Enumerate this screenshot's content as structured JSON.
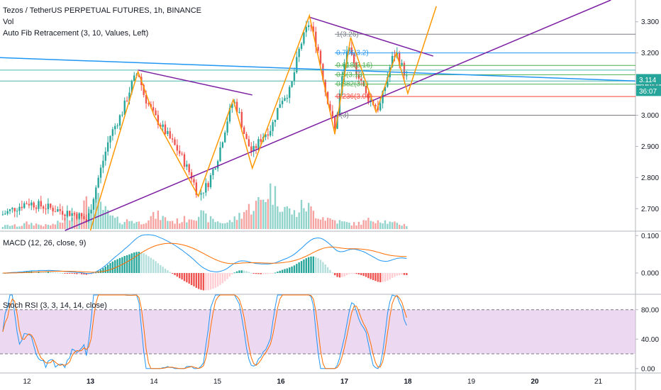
{
  "header": {
    "title": "Tezos / TetherUS PERPETUAL FUTURES, 1h, BINANCE",
    "vol_label": "Vol",
    "fib_label": "Auto Fib Retracement (3, 10, Values, Left)"
  },
  "price_badges": {
    "last": "3.114",
    "countdown": "36:07"
  },
  "macd": {
    "label": "MACD (12, 26, close, 9)"
  },
  "stoch": {
    "label": "Stoch RSI (3, 3, 14, 14, close)"
  },
  "colors": {
    "up": "#26a69a",
    "down": "#ef5350",
    "vol_up": "#8fd3cb",
    "vol_down": "#f5a3a1",
    "pattern": "#ff9800",
    "trend": "#7b1fa2",
    "resistance": "#2196f3",
    "macd_line": "#2196f3",
    "signal_line": "#ff6d00",
    "stoch_k": "#2196f3",
    "stoch_d": "#ff6d00",
    "stoch_band": "#e1bee7"
  },
  "chart_data": [
    {
      "type": "candlestick",
      "title": "Tezos / TetherUS PERPETUAL FUTURES, 1h, BINANCE",
      "x_ticks": [
        "12",
        "13",
        "14",
        "15",
        "16",
        "17",
        "18",
        "19",
        "20",
        "21"
      ],
      "ylim": [
        2.63,
        3.37
      ],
      "y_ticks": [
        "2.700",
        "2.800",
        "2.900",
        "3.000",
        "3.100",
        "3.200",
        "3.300"
      ],
      "fib_levels": [
        {
          "label": "1(3.26)",
          "value": 3.26
        },
        {
          "label": "0.786(3.2)",
          "value": 3.2
        },
        {
          "label": "0.618(3.16)",
          "value": 3.16
        },
        {
          "label": "0.5(3.13)",
          "value": 3.13
        },
        {
          "label": "0.382(3.1)",
          "value": 3.1
        },
        {
          "label": "0.236(3.06)",
          "value": 3.06
        },
        {
          "label": "0(3)",
          "value": 3.0
        }
      ],
      "price_path": [
        {
          "day": 11.6,
          "price": 2.68
        },
        {
          "day": 11.8,
          "price": 2.7
        },
        {
          "day": 12.0,
          "price": 2.72
        },
        {
          "day": 12.2,
          "price": 2.71
        },
        {
          "day": 12.4,
          "price": 2.7
        },
        {
          "day": 12.6,
          "price": 2.69
        },
        {
          "day": 12.8,
          "price": 2.68
        },
        {
          "day": 12.95,
          "price": 2.66
        },
        {
          "day": 13.1,
          "price": 2.78
        },
        {
          "day": 13.3,
          "price": 2.93
        },
        {
          "day": 13.5,
          "price": 3.01
        },
        {
          "day": 13.65,
          "price": 3.1
        },
        {
          "day": 13.75,
          "price": 3.14
        },
        {
          "day": 13.85,
          "price": 3.06
        },
        {
          "day": 14.0,
          "price": 3.0
        },
        {
          "day": 14.2,
          "price": 2.94
        },
        {
          "day": 14.4,
          "price": 2.88
        },
        {
          "day": 14.6,
          "price": 2.8
        },
        {
          "day": 14.7,
          "price": 2.74
        },
        {
          "day": 14.85,
          "price": 2.78
        },
        {
          "day": 15.0,
          "price": 2.86
        },
        {
          "day": 15.15,
          "price": 2.98
        },
        {
          "day": 15.25,
          "price": 3.05
        },
        {
          "day": 15.35,
          "price": 3.0
        },
        {
          "day": 15.45,
          "price": 2.92
        },
        {
          "day": 15.55,
          "price": 2.88
        },
        {
          "day": 15.7,
          "price": 2.93
        },
        {
          "day": 15.85,
          "price": 2.96
        },
        {
          "day": 16.0,
          "price": 3.05
        },
        {
          "day": 16.15,
          "price": 3.08
        },
        {
          "day": 16.3,
          "price": 3.22
        },
        {
          "day": 16.45,
          "price": 3.3
        },
        {
          "day": 16.6,
          "price": 3.2
        },
        {
          "day": 16.7,
          "price": 3.08
        },
        {
          "day": 16.8,
          "price": 3.0
        },
        {
          "day": 16.85,
          "price": 2.95
        },
        {
          "day": 16.95,
          "price": 3.1
        },
        {
          "day": 17.05,
          "price": 3.22
        },
        {
          "day": 17.15,
          "price": 3.16
        },
        {
          "day": 17.25,
          "price": 3.12
        },
        {
          "day": 17.35,
          "price": 3.06
        },
        {
          "day": 17.45,
          "price": 3.04
        },
        {
          "day": 17.55,
          "price": 3.02
        },
        {
          "day": 17.65,
          "price": 3.1
        },
        {
          "day": 17.75,
          "price": 3.18
        },
        {
          "day": 17.82,
          "price": 3.2
        },
        {
          "day": 17.9,
          "price": 3.16
        },
        {
          "day": 18.0,
          "price": 3.11
        }
      ],
      "volume": [
        0.05,
        0.08,
        0.06,
        0.12,
        0.1,
        0.07,
        0.09,
        0.15,
        0.3,
        0.45,
        0.5,
        0.6,
        0.35,
        0.2,
        0.15,
        0.18,
        0.12,
        0.22,
        0.28,
        0.2,
        0.15,
        0.18,
        0.25,
        0.3,
        0.2,
        0.15,
        0.12,
        0.2,
        0.35,
        0.45,
        0.55,
        0.8,
        0.6,
        0.4,
        0.3,
        0.5,
        0.35,
        0.25,
        0.2,
        0.15,
        0.12,
        0.1,
        0.15,
        0.2,
        0.18,
        0.12,
        0.1,
        0.08
      ]
    },
    {
      "type": "line",
      "title": "MACD (12, 26, close, 9)",
      "y_ticks": [
        "0.000",
        "0.100"
      ],
      "ylim": [
        -0.055,
        0.11
      ]
    },
    {
      "type": "line",
      "title": "Stoch RSI (3, 3, 14, 14, close)",
      "y_ticks": [
        "0.00",
        "40.00",
        "80.00"
      ],
      "ylim": [
        -5,
        100
      ],
      "band": [
        20,
        80
      ]
    }
  ]
}
